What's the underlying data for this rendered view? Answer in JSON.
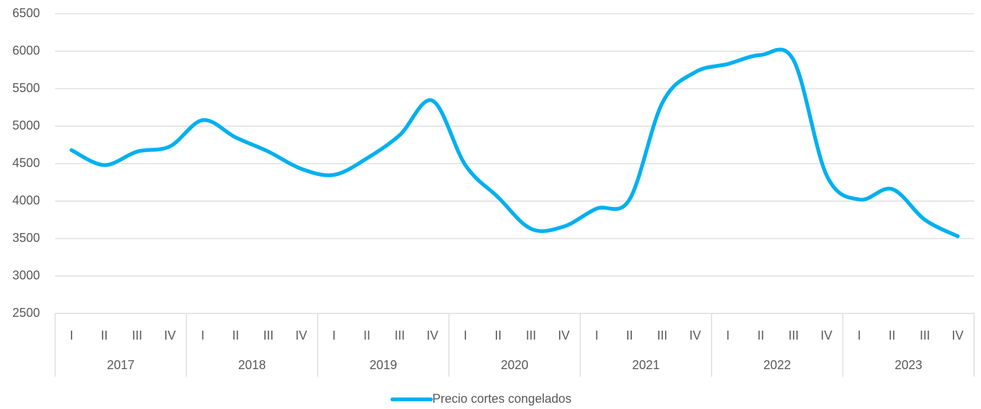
{
  "chart_data": {
    "type": "line",
    "categories": [
      "I",
      "II",
      "III",
      "IV",
      "I",
      "II",
      "III",
      "IV",
      "I",
      "II",
      "III",
      "IV",
      "I",
      "II",
      "III",
      "IV",
      "I",
      "II",
      "III",
      "IV",
      "I",
      "II",
      "III",
      "IV",
      "I",
      "II",
      "III",
      "IV"
    ],
    "groups": [
      "2017",
      "2018",
      "2019",
      "2020",
      "2021",
      "2022",
      "2023"
    ],
    "series": [
      {
        "name": "Precio cortes congelados",
        "color": "#00b0f0",
        "values": [
          4680,
          4480,
          4660,
          4730,
          5080,
          4850,
          4660,
          4430,
          4350,
          4570,
          4880,
          5340,
          4480,
          4050,
          3630,
          3660,
          3900,
          4020,
          5310,
          5720,
          5830,
          5950,
          5880,
          4350,
          4020,
          4160,
          3750,
          3530
        ]
      }
    ],
    "ylim": [
      2500,
      6500
    ],
    "yticks": [
      2500,
      3000,
      3500,
      4000,
      4500,
      5000,
      5500,
      6000,
      6500
    ],
    "grid": true,
    "smooth": true,
    "legend": "bottom"
  }
}
